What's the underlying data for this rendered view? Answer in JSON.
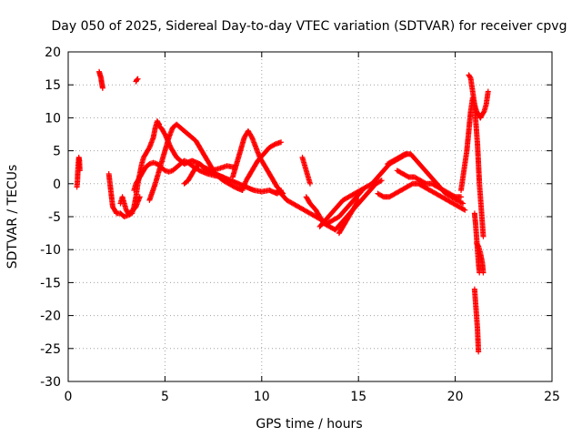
{
  "chart_data": {
    "type": "scatter",
    "title": "Day 050 of 2025, Sidereal Day-to-day VTEC variation (SDTVAR) for receiver cpvg",
    "xlabel": "GPS time / hours",
    "ylabel": "SDTVAR / TECUs",
    "xlim": [
      0,
      25
    ],
    "ylim": [
      -30,
      20
    ],
    "xticks": [
      "0",
      "5",
      "10",
      "15",
      "20",
      "25"
    ],
    "yticks": [
      "-30",
      "-25",
      "-20",
      "-15",
      "-10",
      "-5",
      "0",
      "5",
      "10",
      "15",
      "20"
    ],
    "grid": true,
    "marker": "plus",
    "color": "#ff0000",
    "series": [
      {
        "name": "t0",
        "x": [
          0.45,
          0.48,
          0.5,
          0.52,
          0.55,
          0.58,
          0.6
        ],
        "y": [
          -0.5,
          0.5,
          2,
          3,
          4,
          3.5,
          2
        ]
      },
      {
        "name": "t1",
        "x": [
          1.6,
          1.65,
          1.7,
          1.72,
          1.75,
          1.78
        ],
        "y": [
          17,
          16.5,
          16,
          15.5,
          15,
          14.5
        ]
      },
      {
        "name": "t2",
        "x": [
          3.5,
          3.55,
          3.6
        ],
        "y": [
          15.5,
          15.8,
          15.9
        ]
      },
      {
        "name": "t3",
        "x": [
          2.1,
          2.2,
          2.3,
          2.5,
          2.7,
          2.9,
          3.1,
          3.3,
          3.4,
          3.5,
          3.6,
          3.7,
          3.8,
          3.9,
          4.0,
          4.2,
          4.4,
          4.5,
          4.6,
          4.7
        ],
        "y": [
          1.5,
          -1,
          -3.5,
          -4.5,
          -4.5,
          -5,
          -4.8,
          -4.5,
          -3.5,
          -2,
          0,
          1.5,
          3,
          4,
          4.5,
          5.5,
          7,
          8.5,
          9.5,
          9
        ]
      },
      {
        "name": "t4",
        "x": [
          2.7,
          2.8,
          2.9,
          3.0,
          3.1,
          3.3,
          3.5,
          3.7
        ],
        "y": [
          -3,
          -2,
          -3,
          -4,
          -4.5,
          -4.2,
          -3.5,
          -2
        ]
      },
      {
        "name": "t5",
        "x": [
          3.4,
          3.5,
          3.6,
          3.7,
          3.8,
          3.9,
          4.0,
          4.2,
          4.4,
          4.6,
          4.8,
          5.0,
          5.2,
          5.4,
          5.6,
          5.8,
          6.0,
          6.2,
          6.5,
          6.8,
          7.2,
          7.6,
          8.0
        ],
        "y": [
          -1,
          0,
          0.5,
          1,
          1.5,
          2,
          2.5,
          3,
          3.2,
          3,
          2.5,
          2,
          1.8,
          2,
          2.5,
          3,
          3.5,
          3.2,
          2.5,
          2,
          1.5,
          1.2,
          1
        ]
      },
      {
        "name": "t6",
        "x": [
          4.2,
          4.5,
          4.8,
          5.0,
          5.2,
          5.4,
          5.6,
          5.8,
          6.0,
          6.2,
          6.4,
          6.6,
          6.8,
          7.0,
          7.2,
          7.4,
          7.6,
          7.8,
          8.0,
          8.3,
          8.6,
          9.0
        ],
        "y": [
          -2.5,
          0,
          3,
          5,
          7,
          8.5,
          9,
          8.5,
          8,
          7.5,
          7,
          6.5,
          5.5,
          4.5,
          3.5,
          2.5,
          1.5,
          1,
          0.5,
          0,
          -0.5,
          -1
        ]
      },
      {
        "name": "t7",
        "x": [
          4.6,
          4.8,
          5.0,
          5.3,
          5.6,
          6.0,
          6.4,
          6.8,
          7.2,
          7.6,
          8.0,
          8.4,
          8.8,
          9.2,
          9.6,
          10.0,
          10.4,
          10.8,
          11.0
        ],
        "y": [
          9,
          8.5,
          7.5,
          5.5,
          4,
          3,
          3.5,
          3,
          2,
          1.5,
          1,
          0.5,
          0,
          -0.5,
          -1,
          -1.2,
          -1,
          -1.5,
          -1
        ]
      },
      {
        "name": "t8",
        "x": [
          6.0,
          6.2,
          6.4,
          6.6,
          6.8,
          7.0,
          7.4,
          7.8,
          8.2,
          8.6
        ],
        "y": [
          0,
          0.5,
          1.5,
          2.5,
          3,
          2.5,
          2,
          2.3,
          2.7,
          2.5
        ]
      },
      {
        "name": "t9",
        "x": [
          8.5,
          8.7,
          8.9,
          9.1,
          9.3,
          9.5,
          9.7,
          9.9,
          10.1,
          10.3,
          10.5,
          10.8,
          11.1
        ],
        "y": [
          1,
          3,
          5,
          7,
          8,
          7,
          5.5,
          4,
          3,
          2,
          1,
          -0.5,
          -1.5
        ]
      },
      {
        "name": "t10",
        "x": [
          9.0,
          9.2,
          9.5,
          9.8,
          10.1,
          10.4,
          10.7,
          11.0
        ],
        "y": [
          -1,
          0.5,
          2,
          3.5,
          4.5,
          5.5,
          6,
          6.3
        ]
      },
      {
        "name": "t11",
        "x": [
          10.8,
          11.0,
          11.3,
          11.6,
          11.9,
          12.2,
          12.5,
          12.8,
          13.1,
          13.4,
          13.7,
          14.0,
          14.3,
          14.6,
          14.9,
          15.2
        ],
        "y": [
          -1,
          -1.5,
          -2.5,
          -3,
          -3.5,
          -4,
          -4.5,
          -5,
          -5.5,
          -6,
          -5.5,
          -5,
          -4,
          -3,
          -2,
          -1
        ]
      },
      {
        "name": "t12",
        "x": [
          12.1,
          12.2,
          12.3,
          12.4,
          12.5
        ],
        "y": [
          4,
          3,
          2,
          1,
          0
        ]
      },
      {
        "name": "t13",
        "x": [
          12.3,
          12.5,
          12.8,
          13.0,
          13.2,
          13.5,
          13.8,
          14.1,
          14.4,
          14.7,
          15.0,
          15.3,
          15.6,
          15.9,
          16.2
        ],
        "y": [
          -2,
          -3,
          -4,
          -5,
          -6,
          -6.5,
          -7,
          -6,
          -5,
          -4,
          -3,
          -2,
          -1,
          0,
          0.5
        ]
      },
      {
        "name": "t14",
        "x": [
          13.0,
          13.3,
          13.6,
          13.9,
          14.2,
          14.5,
          14.8,
          15.1,
          15.4,
          15.7,
          16.0,
          16.3,
          16.6,
          16.9,
          17.2,
          17.5
        ],
        "y": [
          -6.5,
          -5.5,
          -4.5,
          -3.5,
          -2.5,
          -2,
          -1.5,
          -1,
          -0.5,
          0,
          1,
          2,
          3,
          3.5,
          4,
          4.5
        ]
      },
      {
        "name": "t15",
        "x": [
          14.0,
          14.2,
          14.4,
          14.6,
          14.8,
          15.0
        ],
        "y": [
          -7.5,
          -6.5,
          -5.5,
          -4.5,
          -3.5,
          -2.5
        ]
      },
      {
        "name": "t16",
        "x": [
          16.0,
          16.3,
          16.6,
          16.9,
          17.2,
          17.5,
          17.8,
          18.1,
          18.4,
          18.7,
          19.0,
          19.3,
          19.6,
          19.9,
          20.2,
          20.5
        ],
        "y": [
          -1.5,
          -2,
          -2,
          -1.5,
          -1,
          -0.5,
          0,
          0,
          -0.5,
          -1,
          -1.5,
          -2,
          -2.5,
          -3,
          -3.5,
          -4
        ]
      },
      {
        "name": "t17",
        "x": [
          16.5,
          16.8,
          17.1,
          17.4,
          17.7,
          18.0,
          18.3,
          18.6,
          18.9,
          19.2,
          19.5,
          19.8,
          20.1,
          20.4
        ],
        "y": [
          3,
          3.5,
          4,
          4.5,
          4.5,
          3.5,
          2.5,
          1.5,
          0.5,
          -0.5,
          -1.5,
          -2,
          -2.5,
          -3
        ]
      },
      {
        "name": "t18",
        "x": [
          17.0,
          17.3,
          17.6,
          17.9,
          18.2,
          18.5,
          18.8,
          19.1,
          19.4,
          19.7,
          20.0,
          20.3
        ],
        "y": [
          2,
          1.5,
          1,
          1,
          0.5,
          0,
          0,
          -0.5,
          -1,
          -1.5,
          -2,
          -2
        ]
      },
      {
        "name": "t19",
        "x": [
          20.3,
          20.4,
          20.5,
          20.6,
          20.7,
          20.8,
          20.9,
          21.0,
          21.1,
          21.2,
          21.3
        ],
        "y": [
          -1,
          1,
          3,
          5,
          8,
          11,
          13,
          12,
          11,
          10.5,
          10
        ]
      },
      {
        "name": "t20",
        "x": [
          20.7,
          20.8,
          20.85,
          20.9,
          21.0,
          21.05,
          21.1
        ],
        "y": [
          16.5,
          16,
          15,
          14,
          12,
          10,
          8
        ]
      },
      {
        "name": "t21",
        "x": [
          21.1,
          21.15,
          21.2,
          21.25,
          21.3,
          21.35,
          21.4,
          21.45
        ],
        "y": [
          8,
          6,
          3,
          0,
          -2,
          -4,
          -6,
          -8
        ]
      },
      {
        "name": "t22",
        "x": [
          21.0,
          21.05,
          21.1,
          21.15,
          21.2,
          21.25
        ],
        "y": [
          -4.5,
          -6,
          -8,
          -10,
          -12,
          -13.5
        ]
      },
      {
        "name": "t23",
        "x": [
          21.0,
          21.05,
          21.1,
          21.15,
          21.2
        ],
        "y": [
          -16,
          -18,
          -20,
          -22,
          -25.5
        ]
      },
      {
        "name": "t24",
        "x": [
          21.3,
          21.4,
          21.5,
          21.6,
          21.7
        ],
        "y": [
          10,
          10.5,
          11,
          12,
          14
        ]
      },
      {
        "name": "t25",
        "x": [
          21.1,
          21.2,
          21.3,
          21.4,
          21.45
        ],
        "y": [
          -9,
          -9.5,
          -10.5,
          -12,
          -13.5
        ]
      }
    ]
  }
}
